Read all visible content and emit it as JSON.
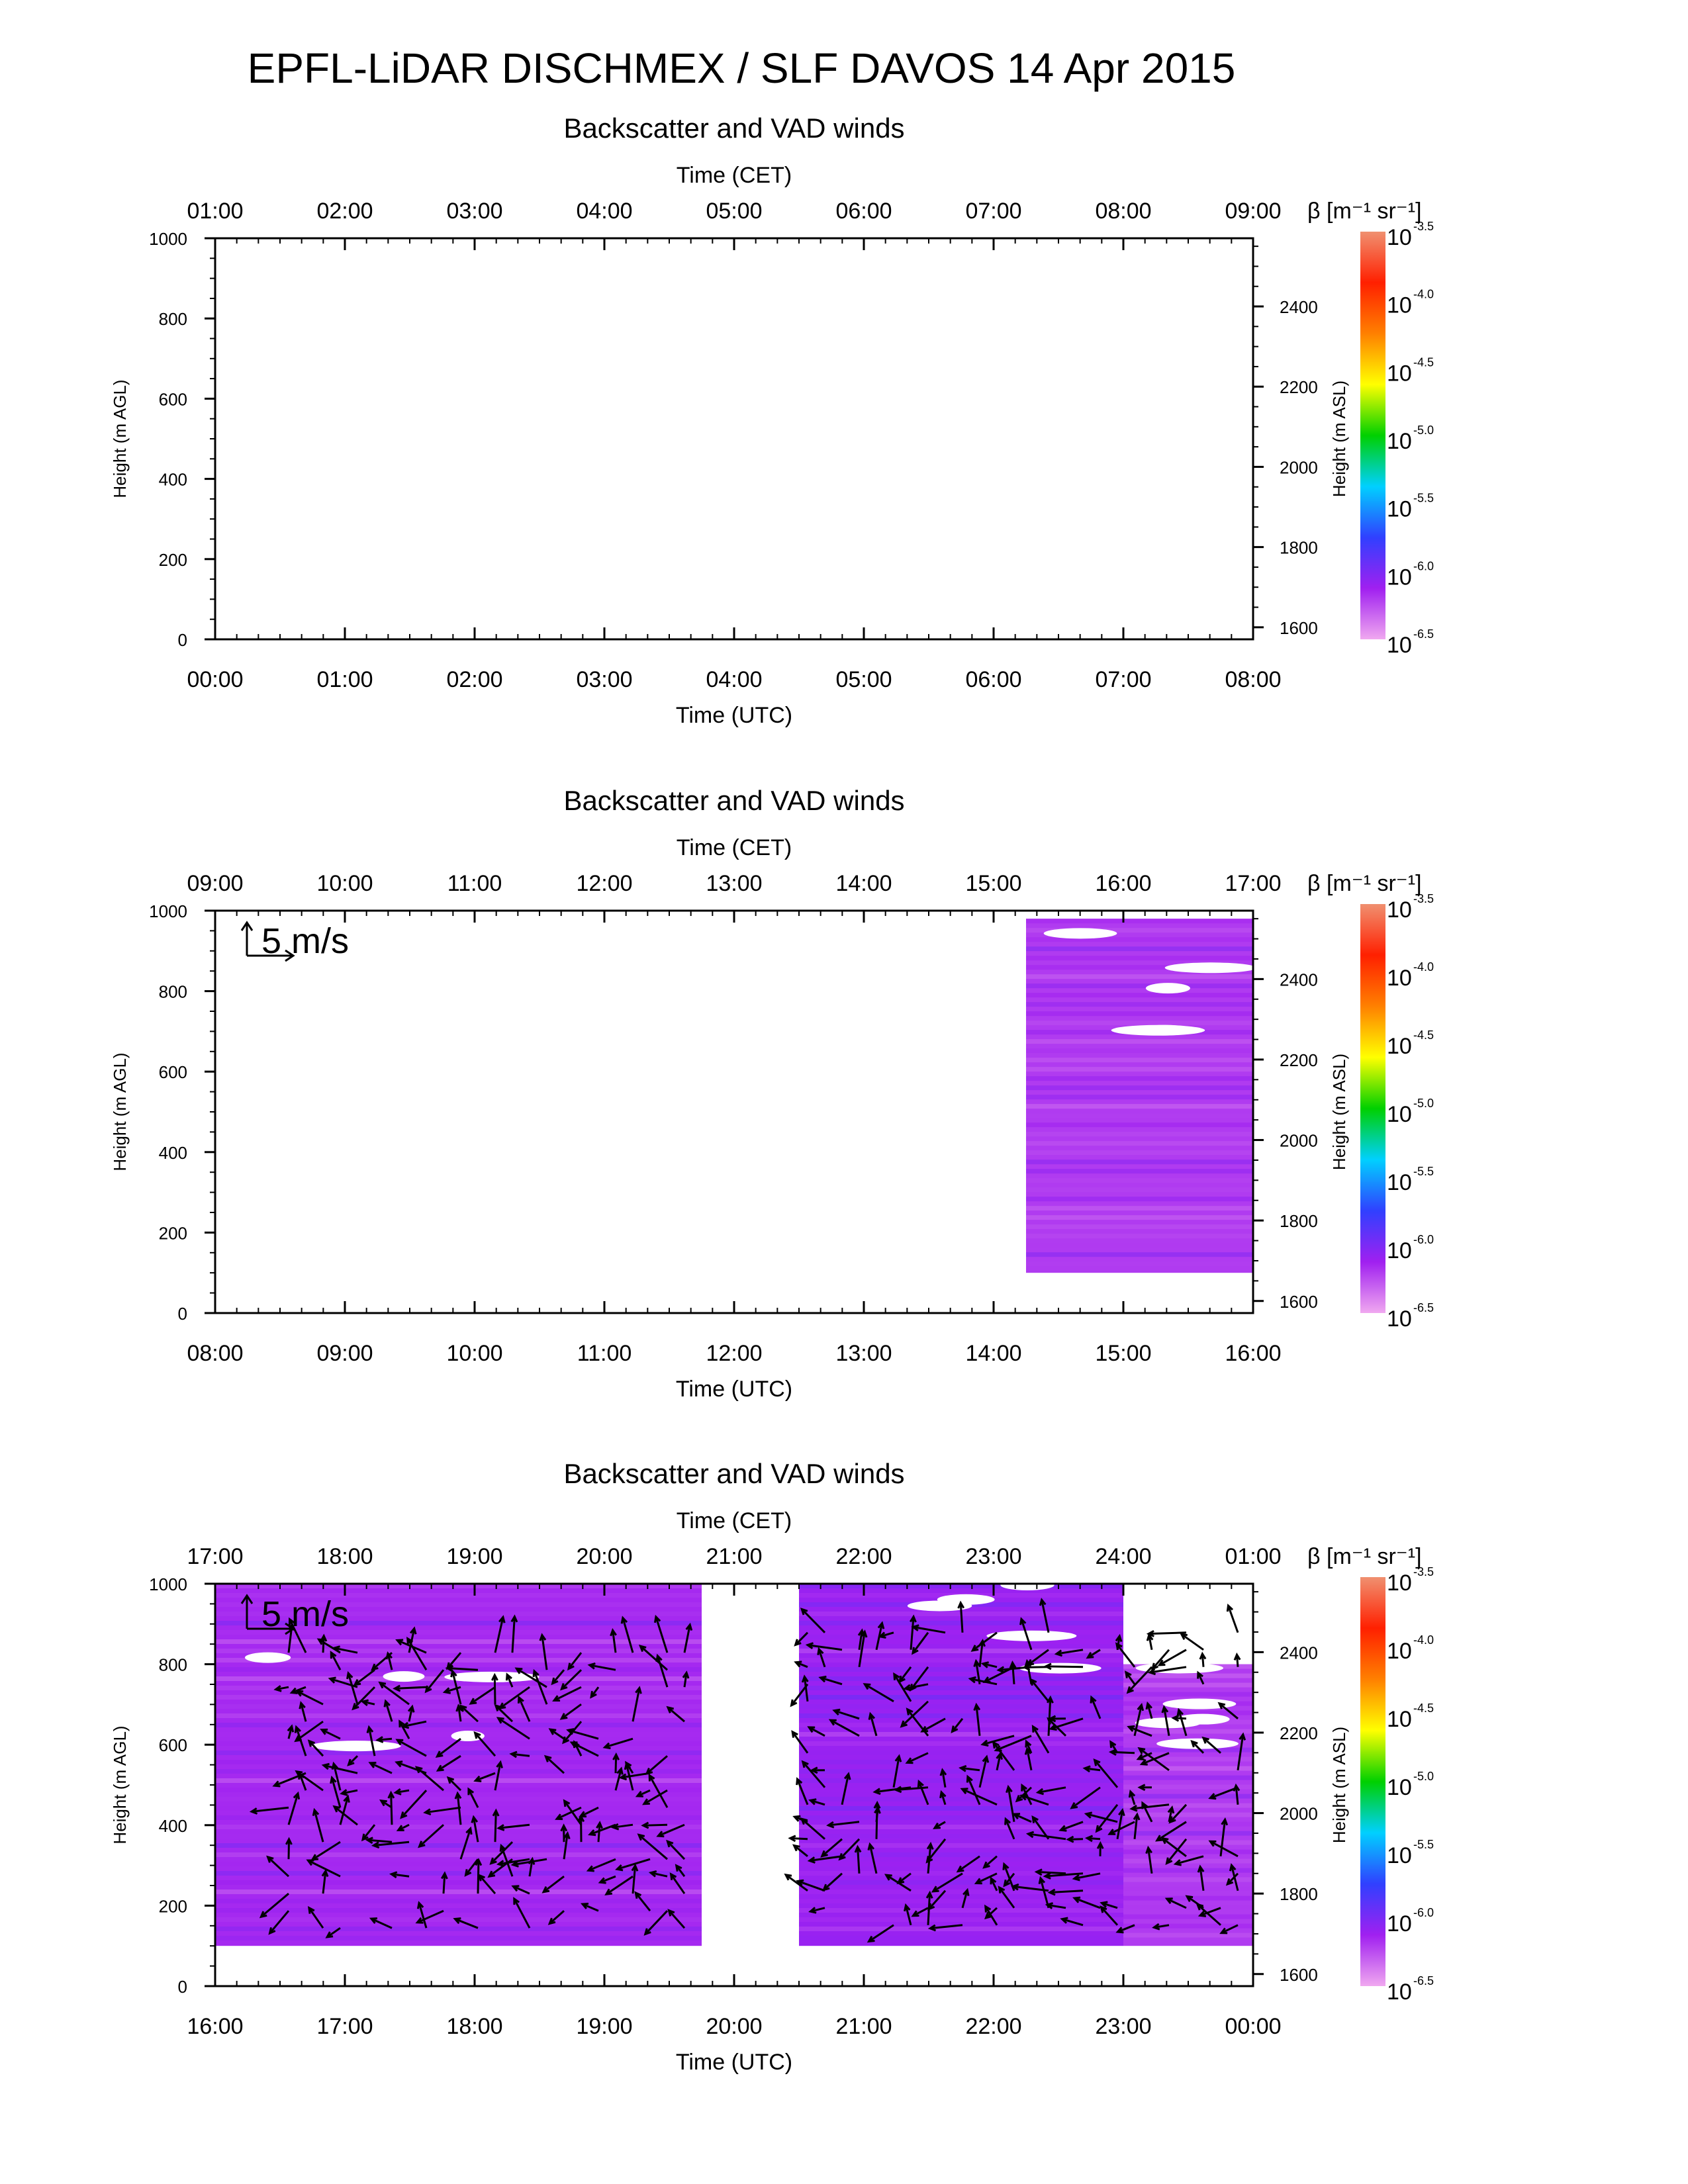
{
  "page": {
    "title": "EPFL-LiDAR DISCHMEX / SLF DAVOS 14 Apr 2015"
  },
  "colorbar": {
    "label": "β [m⁻¹ sr⁻¹]",
    "base": "10",
    "exponents": [
      "-3.5",
      "-4.0",
      "-4.5",
      "-5.0",
      "-5.5",
      "-6.0",
      "-6.5"
    ],
    "range": [
      -6.5,
      -3.5
    ],
    "colors": [
      "#f0a8f0",
      "#a020f0",
      "#3040ff",
      "#00d0ff",
      "#00d000",
      "#ffff00",
      "#ff8000",
      "#ff2000",
      "#f09070"
    ]
  },
  "chart_data": [
    {
      "type": "heatmap",
      "title": "Backscatter and VAD winds",
      "xlabel": "Time (UTC)",
      "xlabel_top": "Time (CET)",
      "ylabel": "Height (m AGL)",
      "ylabel_right": "Height (m ASL)",
      "ylim": [
        0,
        1000
      ],
      "x_ticks_utc": [
        "00:00",
        "01:00",
        "02:00",
        "03:00",
        "04:00",
        "05:00",
        "06:00",
        "07:00",
        "08:00"
      ],
      "x_ticks_cet": [
        "01:00",
        "02:00",
        "03:00",
        "04:00",
        "05:00",
        "06:00",
        "07:00",
        "08:00",
        "09:00"
      ],
      "y_ticks": [
        "0",
        "200",
        "400",
        "600",
        "800",
        "1000"
      ],
      "y_ticks_right": [
        "1600",
        "1800",
        "2000",
        "2200",
        "2400"
      ],
      "data_blocks": [],
      "scale_arrow": null
    },
    {
      "type": "heatmap",
      "title": "Backscatter and VAD winds",
      "xlabel": "Time (UTC)",
      "xlabel_top": "Time (CET)",
      "ylabel": "Height (m AGL)",
      "ylabel_right": "Height (m ASL)",
      "ylim": [
        0,
        1000
      ],
      "x_ticks_utc": [
        "08:00",
        "09:00",
        "10:00",
        "11:00",
        "12:00",
        "13:00",
        "14:00",
        "15:00",
        "16:00"
      ],
      "x_ticks_cet": [
        "09:00",
        "10:00",
        "11:00",
        "12:00",
        "13:00",
        "14:00",
        "15:00",
        "16:00",
        "17:00"
      ],
      "y_ticks": [
        "0",
        "200",
        "400",
        "600",
        "800",
        "1000"
      ],
      "y_ticks_right": [
        "1600",
        "1800",
        "2000",
        "2200",
        "2400"
      ],
      "data_blocks": [
        {
          "t0": 14.25,
          "t1": 16.0,
          "h0": 100,
          "h1": 980,
          "log_beta": -6.2
        }
      ],
      "scale_arrow": "5 m/s"
    },
    {
      "type": "heatmap",
      "title": "Backscatter and VAD winds",
      "xlabel": "Time (UTC)",
      "xlabel_top": "Time (CET)",
      "ylabel": "Height (m AGL)",
      "ylabel_right": "Height (m ASL)",
      "ylim": [
        0,
        1000
      ],
      "x_ticks_utc": [
        "16:00",
        "17:00",
        "18:00",
        "19:00",
        "20:00",
        "21:00",
        "22:00",
        "23:00",
        "00:00"
      ],
      "x_ticks_cet": [
        "17:00",
        "18:00",
        "19:00",
        "20:00",
        "21:00",
        "22:00",
        "23:00",
        "24:00",
        "01:00"
      ],
      "y_ticks": [
        "0",
        "200",
        "400",
        "600",
        "800",
        "1000"
      ],
      "y_ticks_right": [
        "1600",
        "1800",
        "2000",
        "2200",
        "2400"
      ],
      "data_blocks": [
        {
          "t0": 16.0,
          "t1": 19.75,
          "h0": 100,
          "h1": 1000,
          "log_beta": -6.15
        },
        {
          "t0": 20.5,
          "t1": 23.0,
          "h0": 100,
          "h1": 1000,
          "log_beta": -6.1
        },
        {
          "t0": 23.0,
          "t1": 24.0,
          "h0": 100,
          "h1": 800,
          "log_beta": -6.2
        }
      ],
      "scale_arrow": "5 m/s",
      "wind_arrows": [
        {
          "t0": 16.5,
          "t1": 19.75,
          "h0": 100,
          "h1": 850
        },
        {
          "t0": 20.5,
          "t1": 24.0,
          "h0": 100,
          "h1": 900
        }
      ]
    }
  ]
}
